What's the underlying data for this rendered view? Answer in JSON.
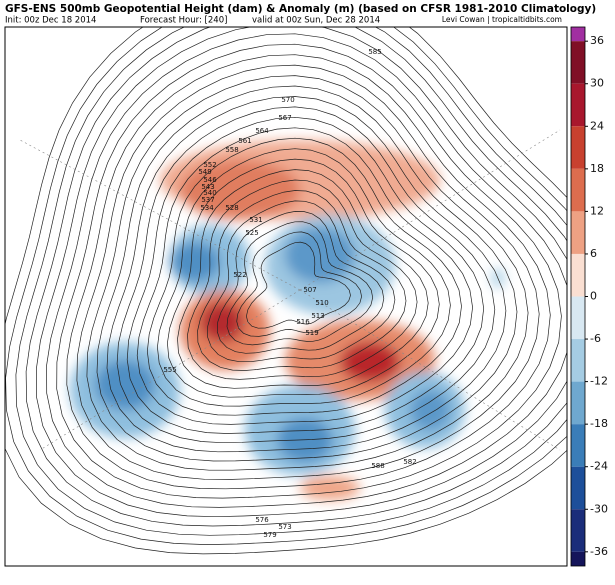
{
  "header": {
    "title": "GFS-ENS 500mb Geopotential Height (dam) & Anomaly (m) (based on CFSR 1981-2010 Climatology)",
    "init": "Init: 00z Dec 18 2014",
    "forecast_hour": "Forecast Hour: [240]",
    "valid": "valid at 00z Sun, Dec 28 2014",
    "credit": "Levi Cowan | tropicaltidbits.com"
  },
  "map": {
    "contour_labels": [
      585,
      582,
      570,
      567,
      564,
      561,
      558,
      552,
      549,
      546,
      543,
      540,
      537,
      534,
      531,
      528,
      525,
      522,
      519,
      516,
      513,
      510,
      507,
      555,
      573,
      576,
      579,
      588
    ]
  },
  "colorbar": {
    "clim": [
      -38,
      38
    ],
    "ticks": [
      36,
      30,
      24,
      18,
      12,
      6,
      0,
      -6,
      -12,
      -18,
      -24,
      -30,
      -36
    ],
    "colors": [
      "#a12fa1",
      "#800f26",
      "#a8172d",
      "#c8412f",
      "#dd6d4e",
      "#eea183",
      "#fadfd2",
      "#d8e8f2",
      "#a5cce3",
      "#6fa8cf",
      "#3a7db8",
      "#1d4f9a",
      "#1b2d7a",
      "#15155a"
    ]
  }
}
